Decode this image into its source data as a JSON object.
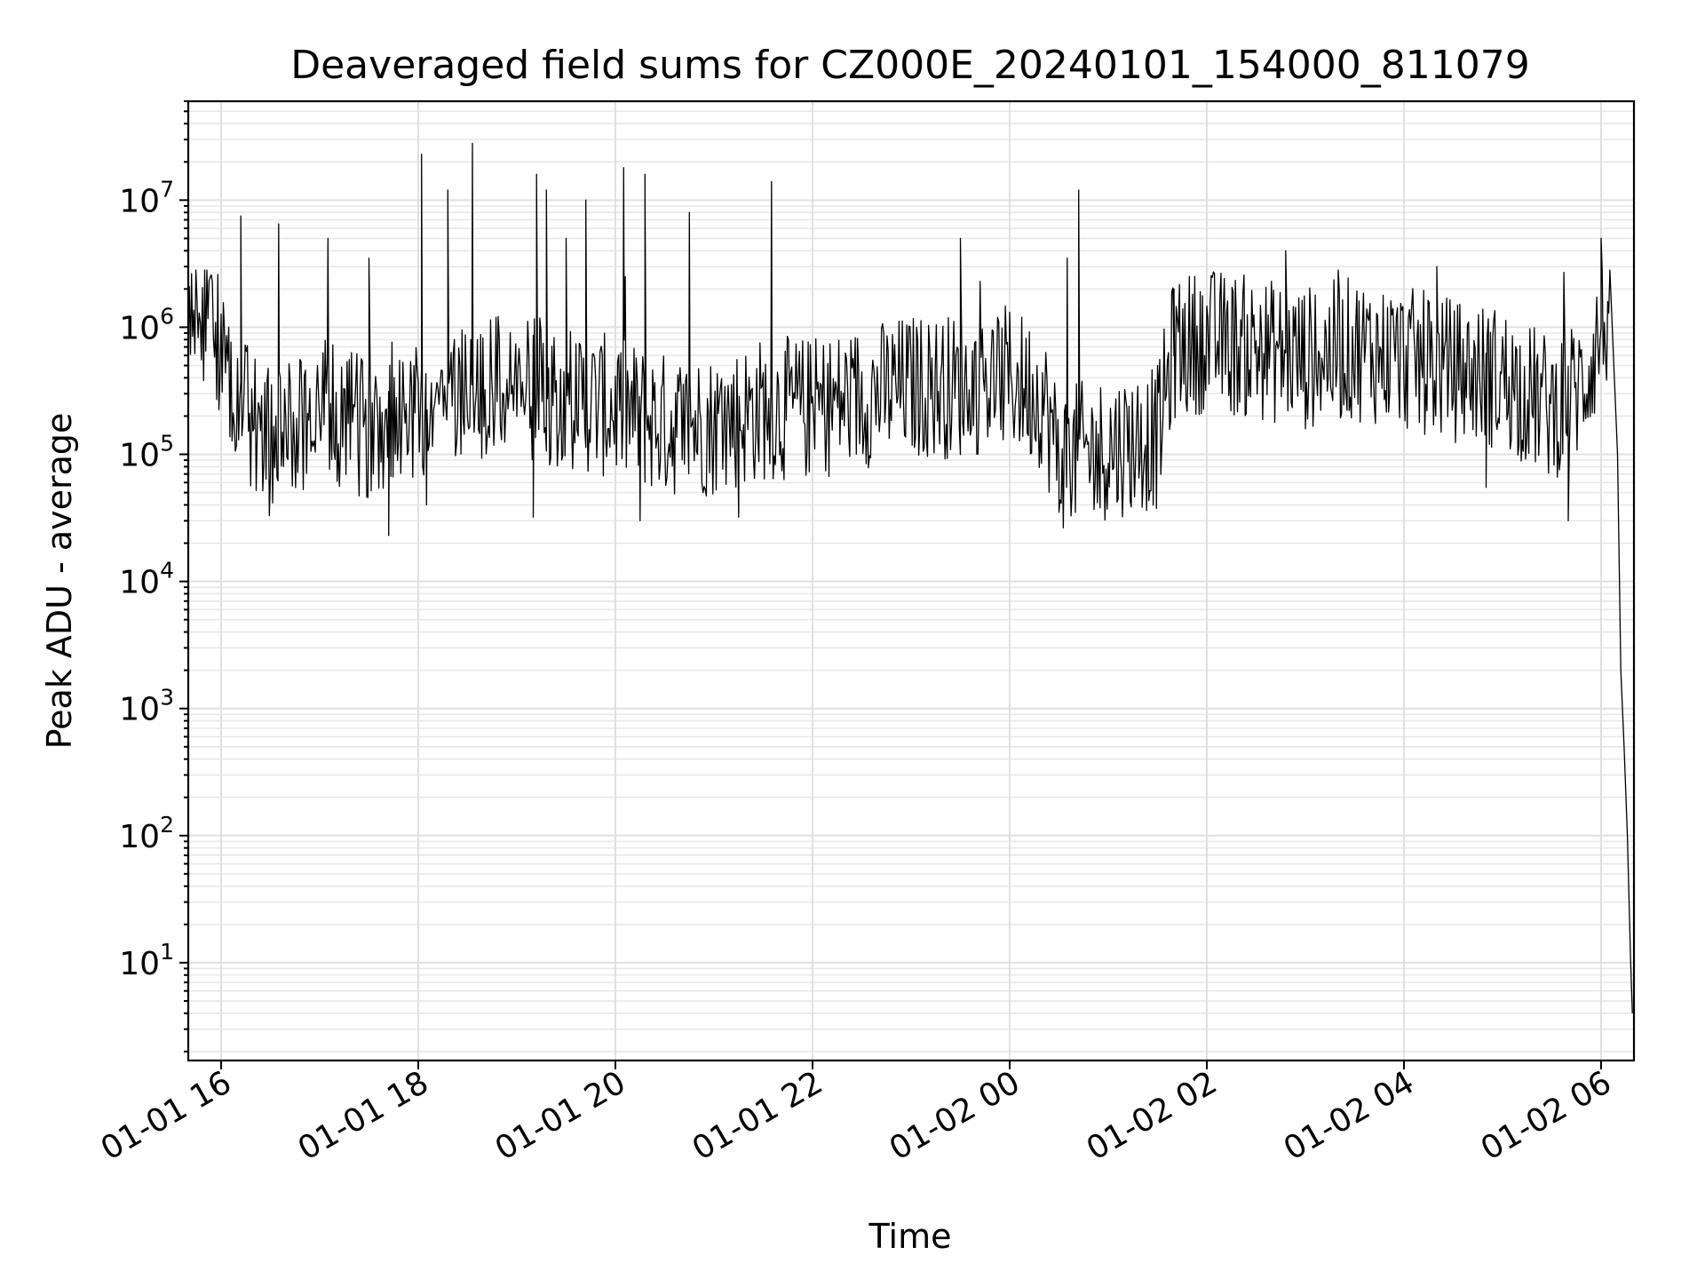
{
  "chart_data": {
    "type": "line",
    "title": "Deaveraged field sums for CZ000E_20240101_154000_811079",
    "xlabel": "Time",
    "ylabel": "Peak ADU - average",
    "yscale": "log",
    "xlim": [
      "2024-01-01 15:40",
      "2024-01-02 06:20"
    ],
    "ylim": [
      1.7,
      60000000
    ],
    "grid": true,
    "line_color": "#000000",
    "x_ticks": [
      {
        "value": "2024-01-01 16:00",
        "label": "01-01 16"
      },
      {
        "value": "2024-01-01 18:00",
        "label": "01-01 18"
      },
      {
        "value": "2024-01-01 20:00",
        "label": "01-01 20"
      },
      {
        "value": "2024-01-01 22:00",
        "label": "01-01 22"
      },
      {
        "value": "2024-01-02 00:00",
        "label": "01-02 00"
      },
      {
        "value": "2024-01-02 02:00",
        "label": "01-02 02"
      },
      {
        "value": "2024-01-02 04:00",
        "label": "01-02 04"
      },
      {
        "value": "2024-01-02 06:00",
        "label": "01-02 06"
      }
    ],
    "y_ticks": [
      {
        "value": 10,
        "base": "10",
        "exp": "1"
      },
      {
        "value": 100,
        "base": "10",
        "exp": "2"
      },
      {
        "value": 1000,
        "base": "10",
        "exp": "3"
      },
      {
        "value": 10000,
        "base": "10",
        "exp": "4"
      },
      {
        "value": 100000,
        "base": "10",
        "exp": "5"
      },
      {
        "value": 1000000,
        "base": "10",
        "exp": "6"
      },
      {
        "value": 10000000,
        "base": "10",
        "exp": "7"
      }
    ],
    "series": [
      {
        "points": [
          [
            "2024-01-01 15:40",
            600000
          ],
          [
            "2024-01-01 15:44",
            900000
          ],
          [
            "2024-01-01 15:48",
            700000
          ],
          [
            "2024-01-01 15:52",
            1000000
          ],
          [
            "2024-01-01 15:56",
            800000
          ],
          [
            "2024-01-01 16:00",
            500000
          ],
          [
            "2024-01-01 16:10",
            300000
          ],
          [
            "2024-01-01 16:20",
            150000
          ],
          [
            "2024-01-01 16:30",
            100000
          ],
          [
            "2024-01-01 16:45",
            150000
          ],
          [
            "2024-01-01 17:00",
            200000
          ],
          [
            "2024-01-01 17:15",
            150000
          ],
          [
            "2024-01-01 17:30",
            150000
          ],
          [
            "2024-01-01 17:45",
            200000
          ],
          [
            "2024-01-01 18:00",
            200000
          ],
          [
            "2024-01-01 18:20",
            250000
          ],
          [
            "2024-01-01 18:40",
            300000
          ],
          [
            "2024-01-01 19:00",
            300000
          ],
          [
            "2024-01-01 19:30",
            250000
          ],
          [
            "2024-01-01 20:00",
            200000
          ],
          [
            "2024-01-01 20:30",
            150000
          ],
          [
            "2024-01-01 21:00",
            150000
          ],
          [
            "2024-01-01 21:30",
            200000
          ],
          [
            "2024-01-01 22:00",
            200000
          ],
          [
            "2024-01-01 22:30",
            250000
          ],
          [
            "2024-01-01 23:00",
            300000
          ],
          [
            "2024-01-01 23:30",
            300000
          ],
          [
            "2024-01-02 00:00",
            350000
          ],
          [
            "2024-01-02 00:20",
            250000
          ],
          [
            "2024-01-02 00:30",
            80000
          ],
          [
            "2024-01-02 01:00",
            100000
          ],
          [
            "2024-01-02 01:30",
            120000
          ],
          [
            "2024-01-02 01:40",
            600000
          ],
          [
            "2024-01-02 02:00",
            700000
          ],
          [
            "2024-01-02 02:30",
            600000
          ],
          [
            "2024-01-02 03:00",
            500000
          ],
          [
            "2024-01-02 03:30",
            600000
          ],
          [
            "2024-01-02 04:00",
            500000
          ],
          [
            "2024-01-02 04:30",
            400000
          ],
          [
            "2024-01-02 05:00",
            350000
          ],
          [
            "2024-01-02 05:30",
            200000
          ],
          [
            "2024-01-02 05:48",
            300000
          ],
          [
            "2024-01-02 06:00",
            800000
          ],
          [
            "2024-01-02 06:05",
            1200000
          ],
          [
            "2024-01-02 06:10",
            100000
          ],
          [
            "2024-01-02 06:12",
            2000
          ],
          [
            "2024-01-02 06:14",
            500
          ],
          [
            "2024-01-02 06:16",
            100
          ],
          [
            "2024-01-02 06:18",
            10
          ],
          [
            "2024-01-02 06:19",
            4
          ]
        ],
        "peaks": [
          [
            "2024-01-01 16:12",
            7500000
          ],
          [
            "2024-01-01 16:35",
            6500000
          ],
          [
            "2024-01-01 17:05",
            5000000
          ],
          [
            "2024-01-01 17:30",
            3500000
          ],
          [
            "2024-01-01 18:02",
            23000000
          ],
          [
            "2024-01-01 18:18",
            12000000
          ],
          [
            "2024-01-01 18:33",
            28000000
          ],
          [
            "2024-01-01 19:12",
            16000000
          ],
          [
            "2024-01-01 19:18",
            12000000
          ],
          [
            "2024-01-01 19:30",
            5000000
          ],
          [
            "2024-01-01 19:42",
            10000000
          ],
          [
            "2024-01-01 20:05",
            18000000
          ],
          [
            "2024-01-01 20:18",
            16000000
          ],
          [
            "2024-01-01 20:45",
            8000000
          ],
          [
            "2024-01-01 21:35",
            14000000
          ],
          [
            "2024-01-01 23:30",
            5000000
          ],
          [
            "2024-01-02 00:35",
            3500000
          ],
          [
            "2024-01-02 00:42",
            12000000
          ],
          [
            "2024-01-02 01:40",
            2000000
          ],
          [
            "2024-01-02 02:48",
            4000000
          ],
          [
            "2024-01-02 04:20",
            3000000
          ],
          [
            "2024-01-02 06:00",
            5000000
          ]
        ],
        "lows": [
          [
            "2024-01-01 17:42",
            23000
          ],
          [
            "2024-01-01 18:05",
            40000
          ],
          [
            "2024-01-01 19:10",
            32000
          ],
          [
            "2024-01-01 20:15",
            30000
          ],
          [
            "2024-01-01 21:15",
            32000
          ],
          [
            "2024-01-02 00:30",
            35000
          ],
          [
            "2024-01-02 00:55",
            38000
          ],
          [
            "2024-01-02 04:50",
            55000
          ],
          [
            "2024-01-02 05:40",
            30000
          ]
        ]
      }
    ]
  }
}
